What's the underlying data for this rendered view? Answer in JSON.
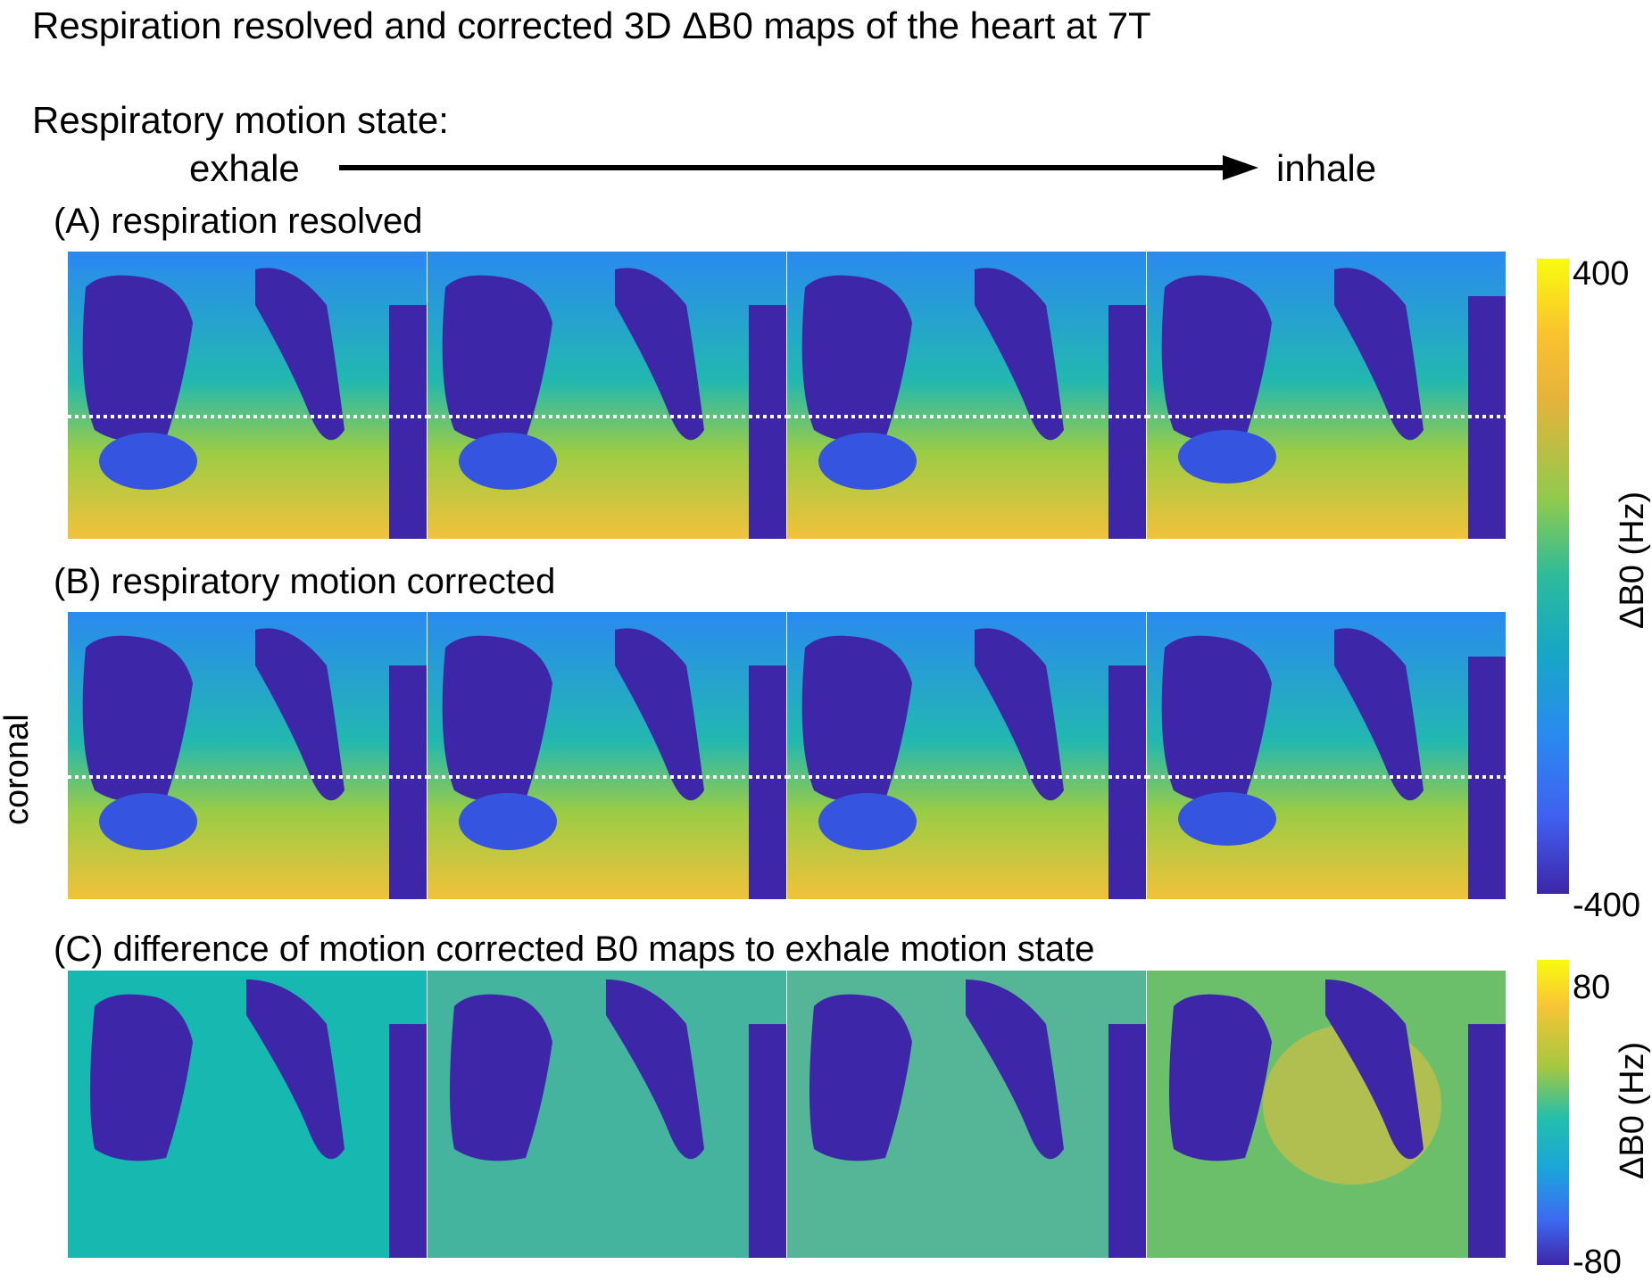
{
  "title": "Respiration resolved and corrected 3D ΔB0 maps of the heart at 7T",
  "respiration": {
    "label": "Respiratory motion state:",
    "start": "exhale",
    "end": "inhale"
  },
  "sections": {
    "a": "(A) respiration resolved",
    "b": "(B) respiratory motion corrected",
    "c": "(C) difference of motion corrected B0 maps to exhale motion state"
  },
  "orientation_label": "coronal",
  "colorbars": {
    "top": {
      "max": "400",
      "min": "-400",
      "label": "ΔB0 (Hz)"
    },
    "bottom": {
      "max": "80",
      "min": "-80",
      "label": "ΔB0 (Hz)"
    }
  },
  "colors": {
    "dark": "#3e26a8",
    "blue": "#2a8aef",
    "cyan": "#16b8c0",
    "green": "#5cc863",
    "yellow": "#f2c23a",
    "orange": "#f5b335",
    "bright_yellow": "#f9fb0e"
  }
}
